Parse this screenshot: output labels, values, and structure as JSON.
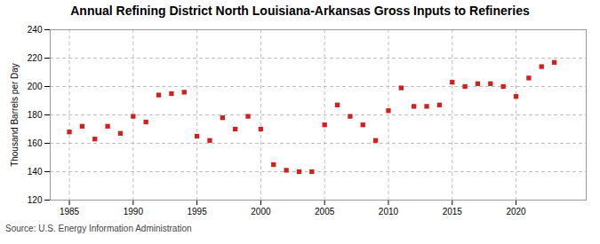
{
  "chart_data": {
    "type": "scatter",
    "title": "Annual Refining District North Louisiana-Arkansas Gross Inputs to Refineries",
    "ylabel": "Thousand Barrels per Day",
    "source": "Source: U.S. Energy Information Administration",
    "x": [
      1985,
      1986,
      1987,
      1988,
      1989,
      1990,
      1991,
      1992,
      1993,
      1994,
      1995,
      1996,
      1997,
      1998,
      1999,
      2000,
      2001,
      2002,
      2003,
      2004,
      2005,
      2006,
      2007,
      2008,
      2009,
      2010,
      2011,
      2012,
      2013,
      2014,
      2015,
      2016,
      2017,
      2018,
      2019,
      2020,
      2021,
      2022,
      2023
    ],
    "values": [
      168,
      172,
      163,
      172,
      167,
      179,
      175,
      194,
      195,
      196,
      165,
      162,
      178,
      170,
      179,
      170,
      145,
      141,
      140,
      140,
      173,
      187,
      179,
      173,
      162,
      183,
      199,
      186,
      186,
      187,
      203,
      200,
      202,
      202,
      200,
      193,
      206,
      214,
      217
    ],
    "color": "#cc2222",
    "marker": "square",
    "xlim": [
      1983.5,
      2025.5
    ],
    "xticks": [
      1985,
      1990,
      1995,
      2000,
      2005,
      2010,
      2015,
      2020
    ],
    "ylim": [
      120,
      240
    ],
    "yticks": [
      120,
      140,
      160,
      180,
      200,
      220,
      240
    ],
    "grid": true
  }
}
